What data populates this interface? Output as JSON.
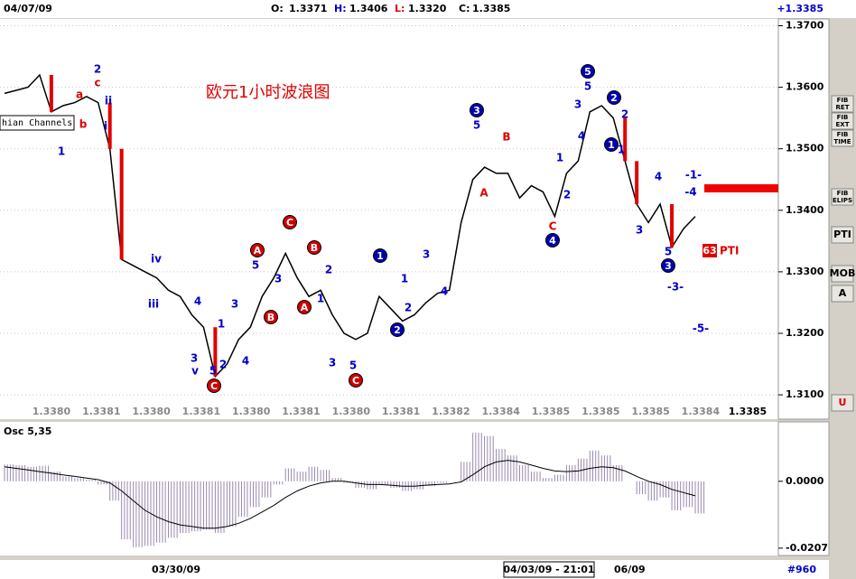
{
  "header": {
    "date": "04/07/09",
    "open_label": "O:",
    "open": "1.3371",
    "high_label": "H:",
    "high": "1.3406",
    "low_label": "L:",
    "low": "1.3320",
    "close_label": "C:",
    "close": "1.3385",
    "last": "+1.3385"
  },
  "main_chart": {
    "annotation": "欧元1小时波浪图",
    "channel_label": "hian Channels",
    "pti_value": "63",
    "pti_label": "PTI",
    "ylim": [
      1.3062,
      1.3711
    ],
    "yticks": [
      {
        "value": 1.37,
        "label": "1.3700"
      },
      {
        "value": 1.36,
        "label": "1.3600"
      },
      {
        "value": 1.35,
        "label": "1.3500"
      },
      {
        "value": 1.34,
        "label": "1.3400"
      },
      {
        "value": 1.33,
        "label": "1.3300"
      },
      {
        "value": 1.32,
        "label": "1.3200"
      },
      {
        "value": 1.31,
        "label": "1.3100"
      }
    ],
    "closes": [
      1.359,
      1.3595,
      1.36,
      1.362,
      1.356,
      1.357,
      1.3575,
      1.3585,
      1.3575,
      1.35,
      1.332,
      1.331,
      1.33,
      1.329,
      1.327,
      1.326,
      1.323,
      1.321,
      1.313,
      1.315,
      1.319,
      1.321,
      1.326,
      1.329,
      1.333,
      1.329,
      1.326,
      1.327,
      1.323,
      1.32,
      1.319,
      1.32,
      1.326,
      1.324,
      1.322,
      1.323,
      1.325,
      1.3265,
      1.327,
      1.338,
      1.345,
      1.347,
      1.346,
      1.346,
      1.342,
      1.344,
      1.343,
      1.339,
      1.346,
      1.348,
      1.356,
      1.357,
      1.355,
      1.348,
      1.341,
      1.338,
      1.341,
      1.334,
      1.337,
      1.339
    ],
    "bottom_labels": [
      "1.3380",
      "1.3381",
      "1.3380",
      "1.3381",
      "1.3380",
      "1.3381",
      "1.3380",
      "1.3381",
      "1.3382",
      "1.3384",
      "1.3385",
      "1.3385",
      "1.3385",
      "1.3384",
      "1.3385"
    ],
    "wave_labels": [
      "a",
      "c",
      "2",
      "ii",
      "b",
      "i",
      "1",
      "iv",
      "iii",
      "4",
      "v",
      "3",
      "1",
      "3",
      "5",
      "2",
      "C",
      "4",
      "5",
      "A",
      "B",
      "C",
      "3",
      "1",
      "B",
      "A",
      "2",
      "3",
      "5",
      "C",
      "1",
      "1",
      "2",
      "2",
      "3",
      "4",
      "3",
      "5",
      "B",
      "A",
      "1",
      "2",
      "C",
      "4",
      "5",
      "5",
      "3",
      "4",
      "2",
      "2",
      "1",
      "1",
      "3",
      "4",
      "5",
      "3",
      "-3-",
      "-5-",
      "-1-",
      "-4"
    ]
  },
  "oscillator": {
    "title": "Osc 5,35",
    "ylim": [
      -0.0227,
      0.0184
    ],
    "yticks": [
      {
        "value": 0,
        "label": "0.0000"
      },
      {
        "value": -0.0207,
        "label": "-0.0207"
      }
    ],
    "values": [
      0.0052,
      0.005,
      0.0045,
      0.0048,
      0.003,
      0.0015,
      0.001,
      0.0005,
      -0.001,
      -0.006,
      -0.018,
      -0.0204,
      -0.02,
      -0.019,
      -0.0175,
      -0.016,
      -0.0155,
      -0.015,
      -0.016,
      -0.014,
      -0.011,
      -0.008,
      -0.005,
      -0.001,
      0.004,
      0.003,
      0.0045,
      0.0035,
      0.001,
      -0.0005,
      -0.002,
      -0.0025,
      -0.001,
      -0.002,
      -0.003,
      -0.0025,
      -0.0015,
      -0.0005,
      0.0,
      0.006,
      0.015,
      0.014,
      0.01,
      0.008,
      0.005,
      0.003,
      0.001,
      0.002,
      0.005,
      0.007,
      0.0095,
      0.008,
      0.005,
      0.0,
      -0.004,
      -0.006,
      -0.005,
      -0.009,
      -0.008,
      -0.01
    ],
    "signal": [
      0.0045,
      0.004,
      0.0035,
      0.003,
      0.0025,
      0.002,
      0.0015,
      0.001,
      0.0005,
      -0.0005,
      -0.003,
      -0.006,
      -0.009,
      -0.011,
      -0.0125,
      -0.0135,
      -0.014,
      -0.0145,
      -0.0145,
      -0.014,
      -0.013,
      -0.0115,
      -0.0095,
      -0.0075,
      -0.005,
      -0.003,
      -0.0015,
      -0.0005,
      0.0,
      0.0,
      -0.0005,
      -0.001,
      -0.001,
      -0.0012,
      -0.0015,
      -0.0015,
      -0.0012,
      -0.001,
      -0.0008,
      -0.0002,
      0.002,
      0.0045,
      0.006,
      0.0065,
      0.006,
      0.005,
      0.004,
      0.0032,
      0.003,
      0.0032,
      0.004,
      0.0045,
      0.0042,
      0.0032,
      0.0015,
      0.0,
      -0.001,
      -0.0025,
      -0.0035,
      -0.0045
    ]
  },
  "footer": {
    "date1": "03/30/09",
    "cursor": "04/03/09 - 21:01",
    "date2": "06/09",
    "count": "#960"
  },
  "toolbar": [
    "FIB",
    "RET",
    "FIB",
    "EXT",
    "FIB",
    "TIME",
    "FIB",
    "ELIPS",
    "PTI",
    "MOB",
    "A",
    "U"
  ]
}
